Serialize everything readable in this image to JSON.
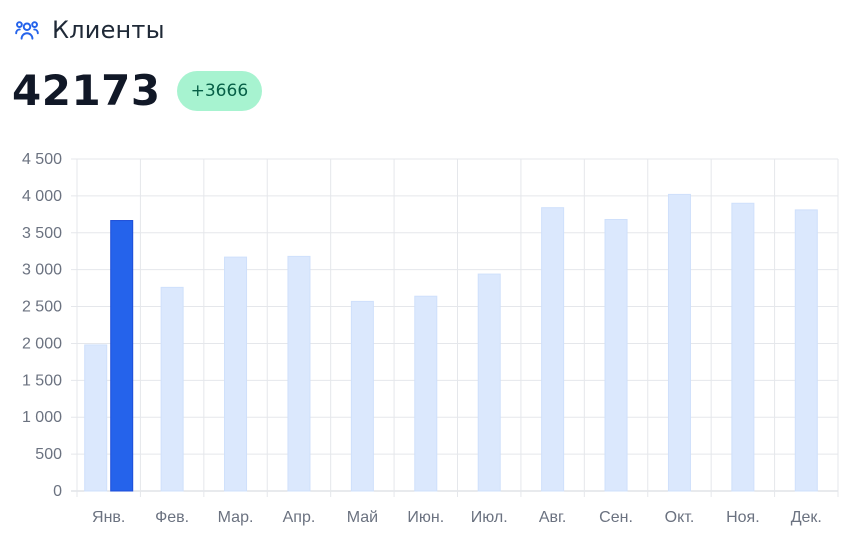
{
  "header": {
    "icon": "users-icon",
    "title": "Клиенты"
  },
  "metric": {
    "value": "42173",
    "change": "+3666"
  },
  "colors": {
    "icon": "#2563eb",
    "bar_light": "#dbe8fd",
    "bar_highlight": "#2563eb",
    "badge_bg": "#a7f3d0",
    "badge_text": "#065f46"
  },
  "chart_data": {
    "type": "bar",
    "categories": [
      "Янв.",
      "Фев.",
      "Мар.",
      "Апр.",
      "Май",
      "Июн.",
      "Июл.",
      "Авг.",
      "Сен.",
      "Окт.",
      "Ноя.",
      "Дек."
    ],
    "series": [
      {
        "values": [
          1980,
          null,
          null,
          null,
          null,
          null,
          null,
          null,
          null,
          null,
          null,
          null
        ],
        "color": "#dbe8fd"
      },
      {
        "values": [
          3666,
          2760,
          3170,
          3180,
          2570,
          2640,
          2940,
          3840,
          3680,
          4020,
          3900,
          3810
        ],
        "highlight_index": 0,
        "color": "#dbe8fd",
        "highlight_color": "#2563eb"
      }
    ],
    "y_ticks": [
      "0",
      "500",
      "1 000",
      "1 500",
      "2 000",
      "2 500",
      "3 000",
      "3 500",
      "4 000",
      "4 500"
    ],
    "ylim": [
      0,
      4500
    ],
    "grid": true
  }
}
